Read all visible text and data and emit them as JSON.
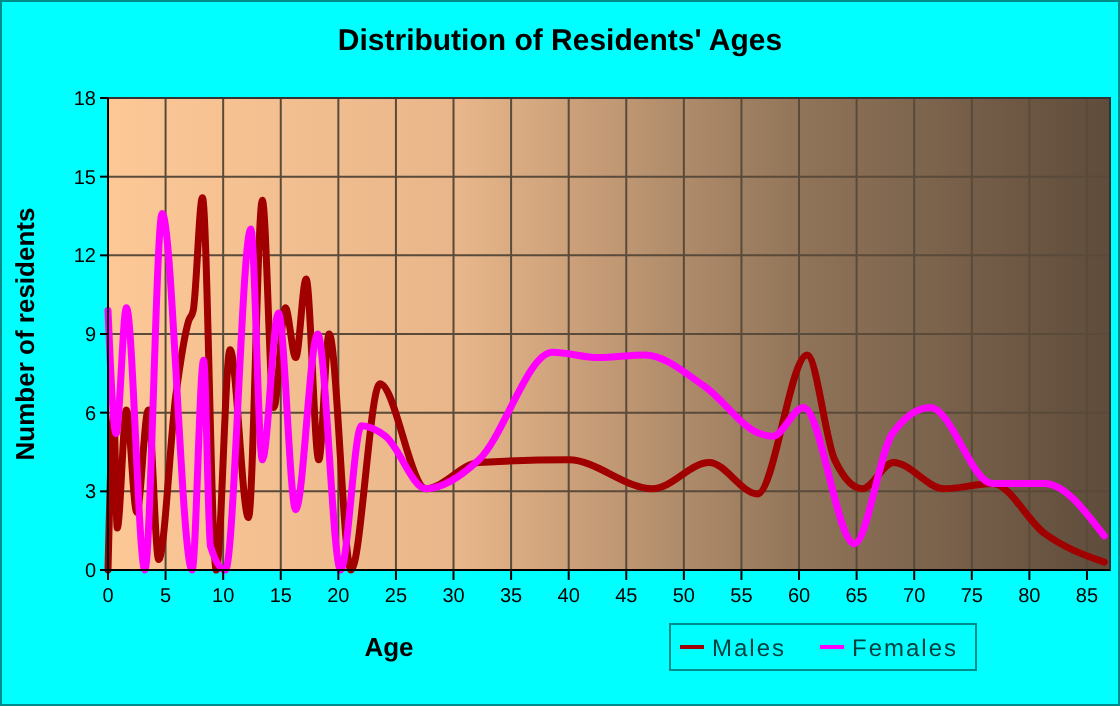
{
  "chart_data": {
    "type": "line",
    "title": "Distribution of Residents' Ages",
    "xlabel": "Age",
    "ylabel": "Number of residents",
    "xlim": [
      0,
      87
    ],
    "ylim": [
      0,
      18
    ],
    "xticks": [
      0,
      5,
      10,
      15,
      20,
      25,
      30,
      35,
      40,
      45,
      50,
      55,
      60,
      65,
      70,
      75,
      80,
      85
    ],
    "yticks": [
      0,
      3,
      6,
      9,
      12,
      15,
      18
    ],
    "grid": true,
    "legend": "bottom right",
    "marker": "none",
    "line_style": "solid",
    "series": [
      {
        "name": "Males",
        "color": "#a00000",
        "x": [
          0,
          0.5,
          0.8,
          1.6,
          2.5,
          3.5,
          4.4,
          5.9,
          7,
          7.4,
          8.2,
          9.4,
          10.6,
          12.2,
          13.4,
          14.4,
          15.4,
          16.3,
          17.2,
          18.3,
          19.2,
          21.1,
          23.6,
          27.6,
          32.2,
          40,
          47.3,
          52.2,
          56.4,
          60.7,
          63.1,
          65.5,
          68.2,
          72.6,
          76.8,
          81.3,
          86.5
        ],
        "values": [
          0,
          6,
          1.6,
          6.1,
          2.2,
          6.1,
          0.4,
          6.7,
          9.5,
          9.9,
          14.2,
          0,
          8.4,
          2,
          14.1,
          6.2,
          10,
          8.1,
          11.1,
          4.2,
          9,
          0,
          7.1,
          3.1,
          4.1,
          4.2,
          3.1,
          4.1,
          2.9,
          8.2,
          4.2,
          3.1,
          4.1,
          3.1,
          3.3,
          1.4,
          0.3
        ]
      },
      {
        "name": "Females",
        "color": "#ff00ff",
        "x": [
          0,
          0.7,
          1.6,
          3.2,
          4.7,
          7.3,
          8.3,
          8.9,
          10.2,
          12.4,
          13.4,
          14.8,
          16.3,
          18.2,
          20.2,
          22,
          24.1,
          27.6,
          32.2,
          38.6,
          42.6,
          46.6,
          51.8,
          56.6,
          57.7,
          60.4,
          64.8,
          68.1,
          71.4,
          76.8,
          81.3,
          86.5
        ],
        "values": [
          9.9,
          5.2,
          10,
          0,
          13.6,
          0,
          8,
          0.9,
          0,
          13,
          4.2,
          9.8,
          2.3,
          9,
          0,
          5.5,
          5.1,
          3.1,
          4.2,
          8.3,
          8.1,
          8.2,
          7,
          5.2,
          5.1,
          6.2,
          1,
          5.2,
          6.2,
          3.3,
          3.3,
          1.3
        ]
      }
    ]
  }
}
